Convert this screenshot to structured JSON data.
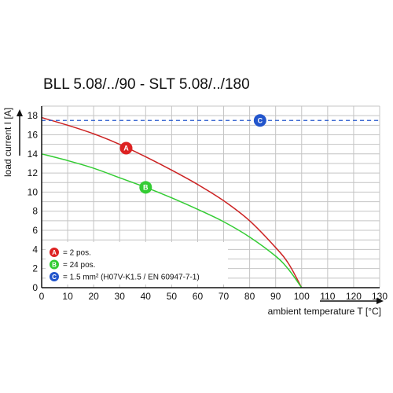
{
  "chart_data": {
    "type": "line",
    "title": "BLL 5.08/../90 - SLT 5.08/../180",
    "xlabel": "ambient temperature T [°C]",
    "ylabel": "load current I [A]",
    "xlim": [
      0,
      130
    ],
    "ylim": [
      0,
      19
    ],
    "x_ticks": [
      "0",
      "10",
      "20",
      "30",
      "40",
      "50",
      "60",
      "70",
      "80",
      "90",
      "100",
      "110",
      "120",
      "130"
    ],
    "y_ticks": [
      "0",
      "2",
      "4",
      "6",
      "8",
      "10",
      "12",
      "14",
      "16",
      "18"
    ],
    "grid": true,
    "series": [
      {
        "marker": "A",
        "color": "#cc2222",
        "x": [
          0,
          10,
          20,
          30,
          40,
          50,
          60,
          70,
          80,
          90,
          95,
          100
        ],
        "y": [
          17.8,
          17.0,
          16.1,
          15.0,
          13.7,
          12.3,
          10.8,
          9.1,
          7.0,
          4.2,
          2.5,
          0
        ]
      },
      {
        "marker": "B",
        "color": "#33cc33",
        "x": [
          0,
          10,
          20,
          30,
          40,
          50,
          60,
          70,
          80,
          90,
          95,
          100
        ],
        "y": [
          14.0,
          13.3,
          12.5,
          11.5,
          10.5,
          9.4,
          8.2,
          6.9,
          5.3,
          3.3,
          1.9,
          0
        ]
      },
      {
        "marker": "C",
        "color": "#2255cc",
        "x": [
          0,
          130
        ],
        "y": [
          17.5,
          17.5
        ]
      }
    ],
    "markers": [
      {
        "letter": "A",
        "color": "#dd2222",
        "x": 32.5,
        "y": 14.6
      },
      {
        "letter": "B",
        "color": "#33cc33",
        "x": 40,
        "y": 10.5
      },
      {
        "letter": "C",
        "color": "#2255cc",
        "x": 84,
        "y": 17.5
      }
    ],
    "legend": {
      "placement": "bottom-left",
      "entries": [
        {
          "letter": "A",
          "color": "#dd2222",
          "text": "= 2 pos."
        },
        {
          "letter": "B",
          "color": "#33cc33",
          "text": "= 24 pos."
        },
        {
          "letter": "C",
          "color": "#2255cc",
          "text": "= 1.5 mm² (H07V-K1.5 / EN 60947-7-1)"
        }
      ]
    }
  }
}
